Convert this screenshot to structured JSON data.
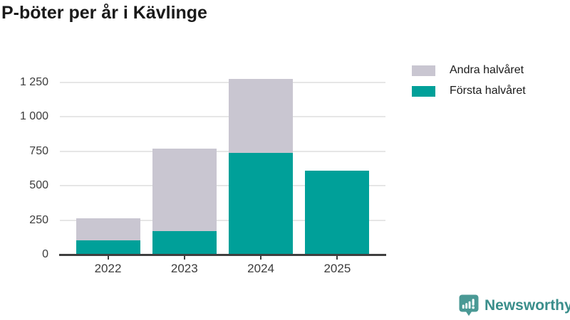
{
  "title": "P-böter per år i Kävlinge",
  "legend": {
    "items": [
      {
        "label": "Andra halvåret",
        "color": "#c9c6d1"
      },
      {
        "label": "Första halvåret",
        "color": "#00a099"
      }
    ]
  },
  "footer": {
    "brand": "Newsworthy"
  },
  "colors": {
    "forsta": "#00a099",
    "andra": "#c9c6d1",
    "title_text": "#1a1a1a",
    "axis_text": "#3c3c3c",
    "axis_line": "#3f3f3f",
    "gridline": "#e6e6e6",
    "brand_text": "#3a8e8b",
    "brand_icon": "#4a9995",
    "background": "#ffffff"
  },
  "chart_data": {
    "type": "bar",
    "stacked": true,
    "title": "P-böter per år i Kävlinge",
    "categories": [
      "2022",
      "2023",
      "2024",
      "2025"
    ],
    "series": [
      {
        "name": "Första halvåret",
        "color": "#00a099",
        "values": [
          105,
          170,
          735,
          610
        ]
      },
      {
        "name": "Andra halvåret",
        "color": "#c9c6d1",
        "values": [
          160,
          600,
          540,
          0
        ]
      }
    ],
    "totals": [
      265,
      770,
      1275,
      610
    ],
    "xlabel": "",
    "ylabel": "",
    "ylim": [
      0,
      1250
    ],
    "yticks": [
      0,
      250,
      500,
      750,
      1000,
      1250
    ],
    "ytick_labels": [
      "0",
      "250",
      "500",
      "750",
      "1 000",
      "1 250"
    ],
    "grid": true,
    "legend_position": "top-right"
  }
}
